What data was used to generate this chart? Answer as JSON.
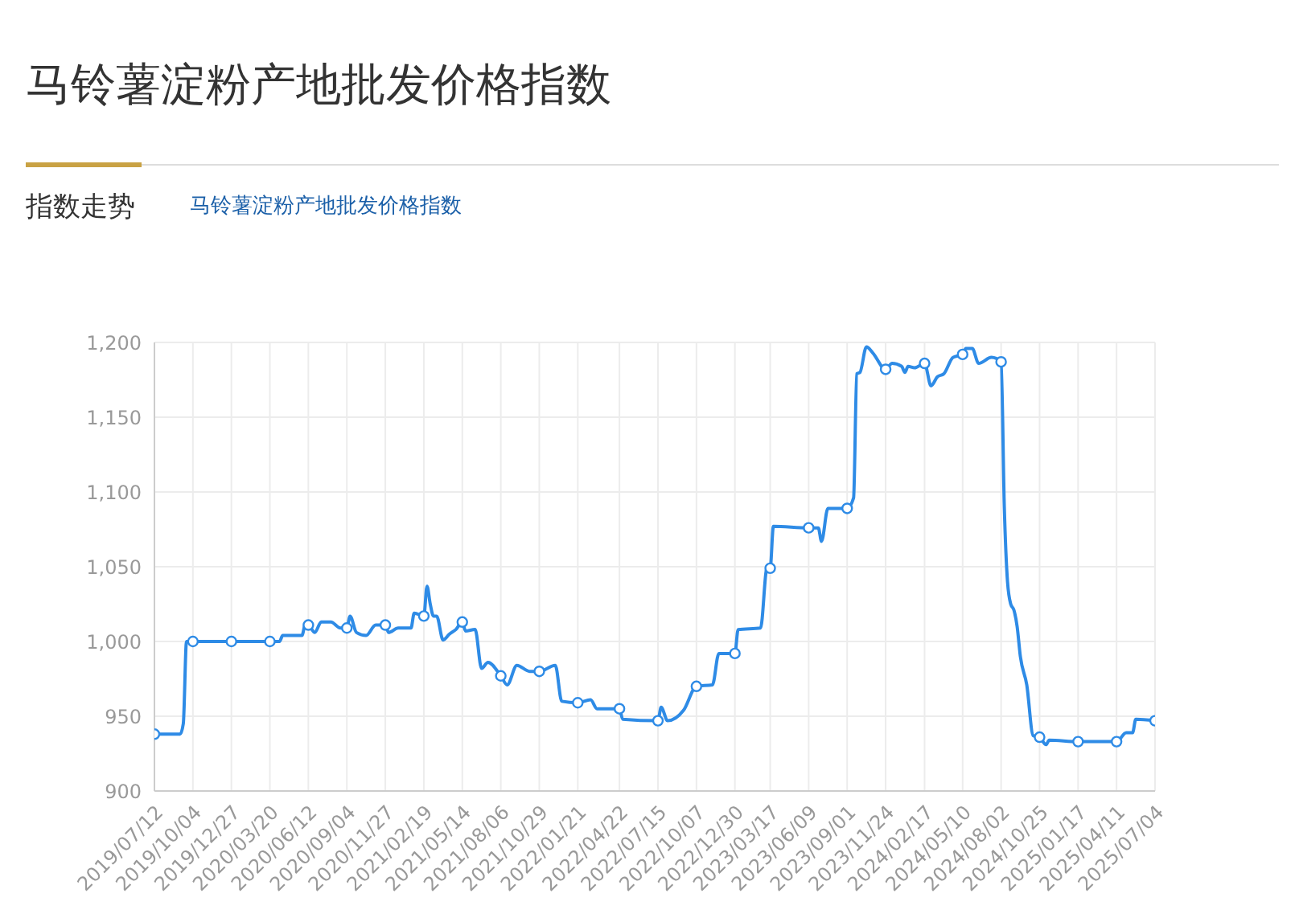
{
  "chart_data": {
    "type": "line",
    "title": "马铃薯淀粉产地批发价格指数",
    "subtitle": "指数走势",
    "annotations": [
      "马铃薯淀粉产地批发价格指数"
    ],
    "x": [
      "2019-07-12",
      "2019-09-06",
      "2019-09-13",
      "2019-09-20",
      "2019-10-04",
      "2019-12-27",
      "2020-03-20",
      "2020-04-10",
      "2020-04-17",
      "2020-05-29",
      "2020-06-05",
      "2020-06-12",
      "2020-06-26",
      "2020-07-10",
      "2020-07-31",
      "2020-08-21",
      "2020-09-04",
      "2020-09-11",
      "2020-09-25",
      "2020-10-16",
      "2020-11-06",
      "2020-11-27",
      "2020-12-04",
      "2020-12-25",
      "2021-01-22",
      "2021-01-29",
      "2021-02-19",
      "2021-02-26",
      "2021-03-05",
      "2021-03-12",
      "2021-03-19",
      "2021-04-02",
      "2021-04-16",
      "2021-04-30",
      "2021-05-14",
      "2021-05-21",
      "2021-06-11",
      "2021-06-25",
      "2021-07-09",
      "2021-08-06",
      "2021-08-20",
      "2021-09-10",
      "2021-10-08",
      "2021-10-29",
      "2021-12-03",
      "2021-12-17",
      "2022-01-21",
      "2022-02-18",
      "2022-03-04",
      "2022-04-22",
      "2022-04-29",
      "2022-07-15",
      "2022-07-22",
      "2022-08-05",
      "2022-09-09",
      "2022-10-07",
      "2022-11-11",
      "2022-11-25",
      "2022-12-30",
      "2023-01-06",
      "2023-02-24",
      "2023-03-10",
      "2023-03-17",
      "2023-03-24",
      "2023-06-09",
      "2023-06-30",
      "2023-07-07",
      "2023-07-21",
      "2023-09-01",
      "2023-09-15",
      "2023-09-22",
      "2023-09-29",
      "2023-10-13",
      "2023-10-27",
      "2023-11-24",
      "2023-12-08",
      "2023-12-29",
      "2024-01-05",
      "2024-01-12",
      "2024-01-26",
      "2024-02-17",
      "2024-03-02",
      "2024-03-16",
      "2024-03-30",
      "2024-04-19",
      "2024-05-10",
      "2024-05-17",
      "2024-05-31",
      "2024-06-14",
      "2024-07-12",
      "2024-08-02",
      "2024-08-09",
      "2024-08-16",
      "2024-08-23",
      "2024-08-30",
      "2024-09-06",
      "2024-09-13",
      "2024-09-27",
      "2024-10-11",
      "2024-10-25",
      "2024-11-08",
      "2024-11-15",
      "2025-01-17",
      "2025-04-11",
      "2025-05-02",
      "2025-05-16",
      "2025-05-23",
      "2025-07-04"
    ],
    "series": [
      {
        "color": "#2e8be6",
        "values": [
          938,
          938,
          945,
          1000,
          1000,
          1000,
          1000,
          1000,
          1004,
          1004,
          1011,
          1011,
          1006,
          1013,
          1013,
          1009,
          1009,
          1017,
          1006,
          1004,
          1011,
          1011,
          1006,
          1009,
          1009,
          1019,
          1017,
          1037,
          1025,
          1017,
          1017,
          1001,
          1005,
          1008,
          1013,
          1007,
          1008,
          982,
          986,
          977,
          971,
          984,
          980,
          980,
          984,
          960,
          959,
          961,
          955,
          955,
          948,
          947,
          956,
          947,
          954,
          970,
          971,
          992,
          992,
          1008,
          1009,
          1049,
          1049,
          1077,
          1076,
          1076,
          1067,
          1089,
          1089,
          1096,
          1179,
          1180,
          1197,
          1193,
          1182,
          1186,
          1184,
          1180,
          1184,
          1183,
          1186,
          1171,
          1177,
          1179,
          1190,
          1192,
          1196,
          1196,
          1186,
          1190,
          1187,
          1090,
          1040,
          1025,
          1021,
          1010,
          990,
          971,
          937,
          936,
          931,
          934,
          933,
          933,
          939,
          939,
          948,
          947
        ]
      },
      {
        "type": "scatter",
        "color": "#2e8be6",
        "marker": "circle",
        "x": [
          "2019-07-12",
          "2019-10-04",
          "2019-12-27",
          "2020-03-20",
          "2020-06-12",
          "2020-09-04",
          "2020-11-27",
          "2021-02-19",
          "2021-05-14",
          "2021-08-06",
          "2021-10-29",
          "2022-01-21",
          "2022-04-22",
          "2022-07-15",
          "2022-10-07",
          "2022-12-30",
          "2023-03-17",
          "2023-06-09",
          "2023-09-01",
          "2023-11-24",
          "2024-02-17",
          "2024-05-10",
          "2024-08-02",
          "2024-10-25",
          "2025-01-17",
          "2025-04-11",
          "2025-07-04"
        ],
        "values": [
          938,
          1000,
          1000,
          1000,
          1011,
          1009,
          1011,
          1017,
          1013,
          977,
          980,
          959,
          955,
          947,
          970,
          992,
          1049,
          1076,
          1089,
          1182,
          1186,
          1192,
          1187,
          936,
          933,
          933,
          947
        ]
      }
    ],
    "xlim": [
      "2019-07-12",
      "2025-07-04"
    ],
    "xticks": [
      {
        "value": "2019-07-12",
        "label": "2019/07/12"
      },
      {
        "value": "2019-10-04",
        "label": "2019/10/04"
      },
      {
        "value": "2019-12-27",
        "label": "2019/12/27"
      },
      {
        "value": "2020-03-20",
        "label": "2020/03/20"
      },
      {
        "value": "2020-06-12",
        "label": "2020/06/12"
      },
      {
        "value": "2020-09-04",
        "label": "2020/09/04"
      },
      {
        "value": "2020-11-27",
        "label": "2020/11/27"
      },
      {
        "value": "2021-02-19",
        "label": "2021/02/19"
      },
      {
        "value": "2021-05-14",
        "label": "2021/05/14"
      },
      {
        "value": "2021-08-06",
        "label": "2021/08/06"
      },
      {
        "value": "2021-10-29",
        "label": "2021/10/29"
      },
      {
        "value": "2022-01-21",
        "label": "2022/01/21"
      },
      {
        "value": "2022-04-22",
        "label": "2022/04/22"
      },
      {
        "value": "2022-07-15",
        "label": "2022/07/15"
      },
      {
        "value": "2022-10-07",
        "label": "2022/10/07"
      },
      {
        "value": "2022-12-30",
        "label": "2022/12/30"
      },
      {
        "value": "2023-03-17",
        "label": "2023/03/17"
      },
      {
        "value": "2023-06-09",
        "label": "2023/06/09"
      },
      {
        "value": "2023-09-01",
        "label": "2023/09/01"
      },
      {
        "value": "2023-11-24",
        "label": "2023/11/24"
      },
      {
        "value": "2024-02-17",
        "label": "2024/02/17"
      },
      {
        "value": "2024-05-10",
        "label": "2024/05/10"
      },
      {
        "value": "2024-08-02",
        "label": "2024/08/02"
      },
      {
        "value": "2024-10-25",
        "label": "2024/10/25"
      },
      {
        "value": "2025-01-17",
        "label": "2025/01/17"
      },
      {
        "value": "2025-04-11",
        "label": "2025/04/11"
      },
      {
        "value": "2025-07-04",
        "label": "2025/07/04"
      }
    ],
    "ylim": [
      900,
      1200
    ],
    "yticks": [
      900,
      950,
      {
        "value": 1000,
        "label": "1,000"
      },
      {
        "value": 1050,
        "label": "1,050"
      },
      {
        "value": 1100,
        "label": "1,100"
      },
      {
        "value": 1150,
        "label": "1,150"
      },
      {
        "value": 1200,
        "label": "1,200"
      }
    ],
    "grid": true,
    "line_style": "solid"
  }
}
